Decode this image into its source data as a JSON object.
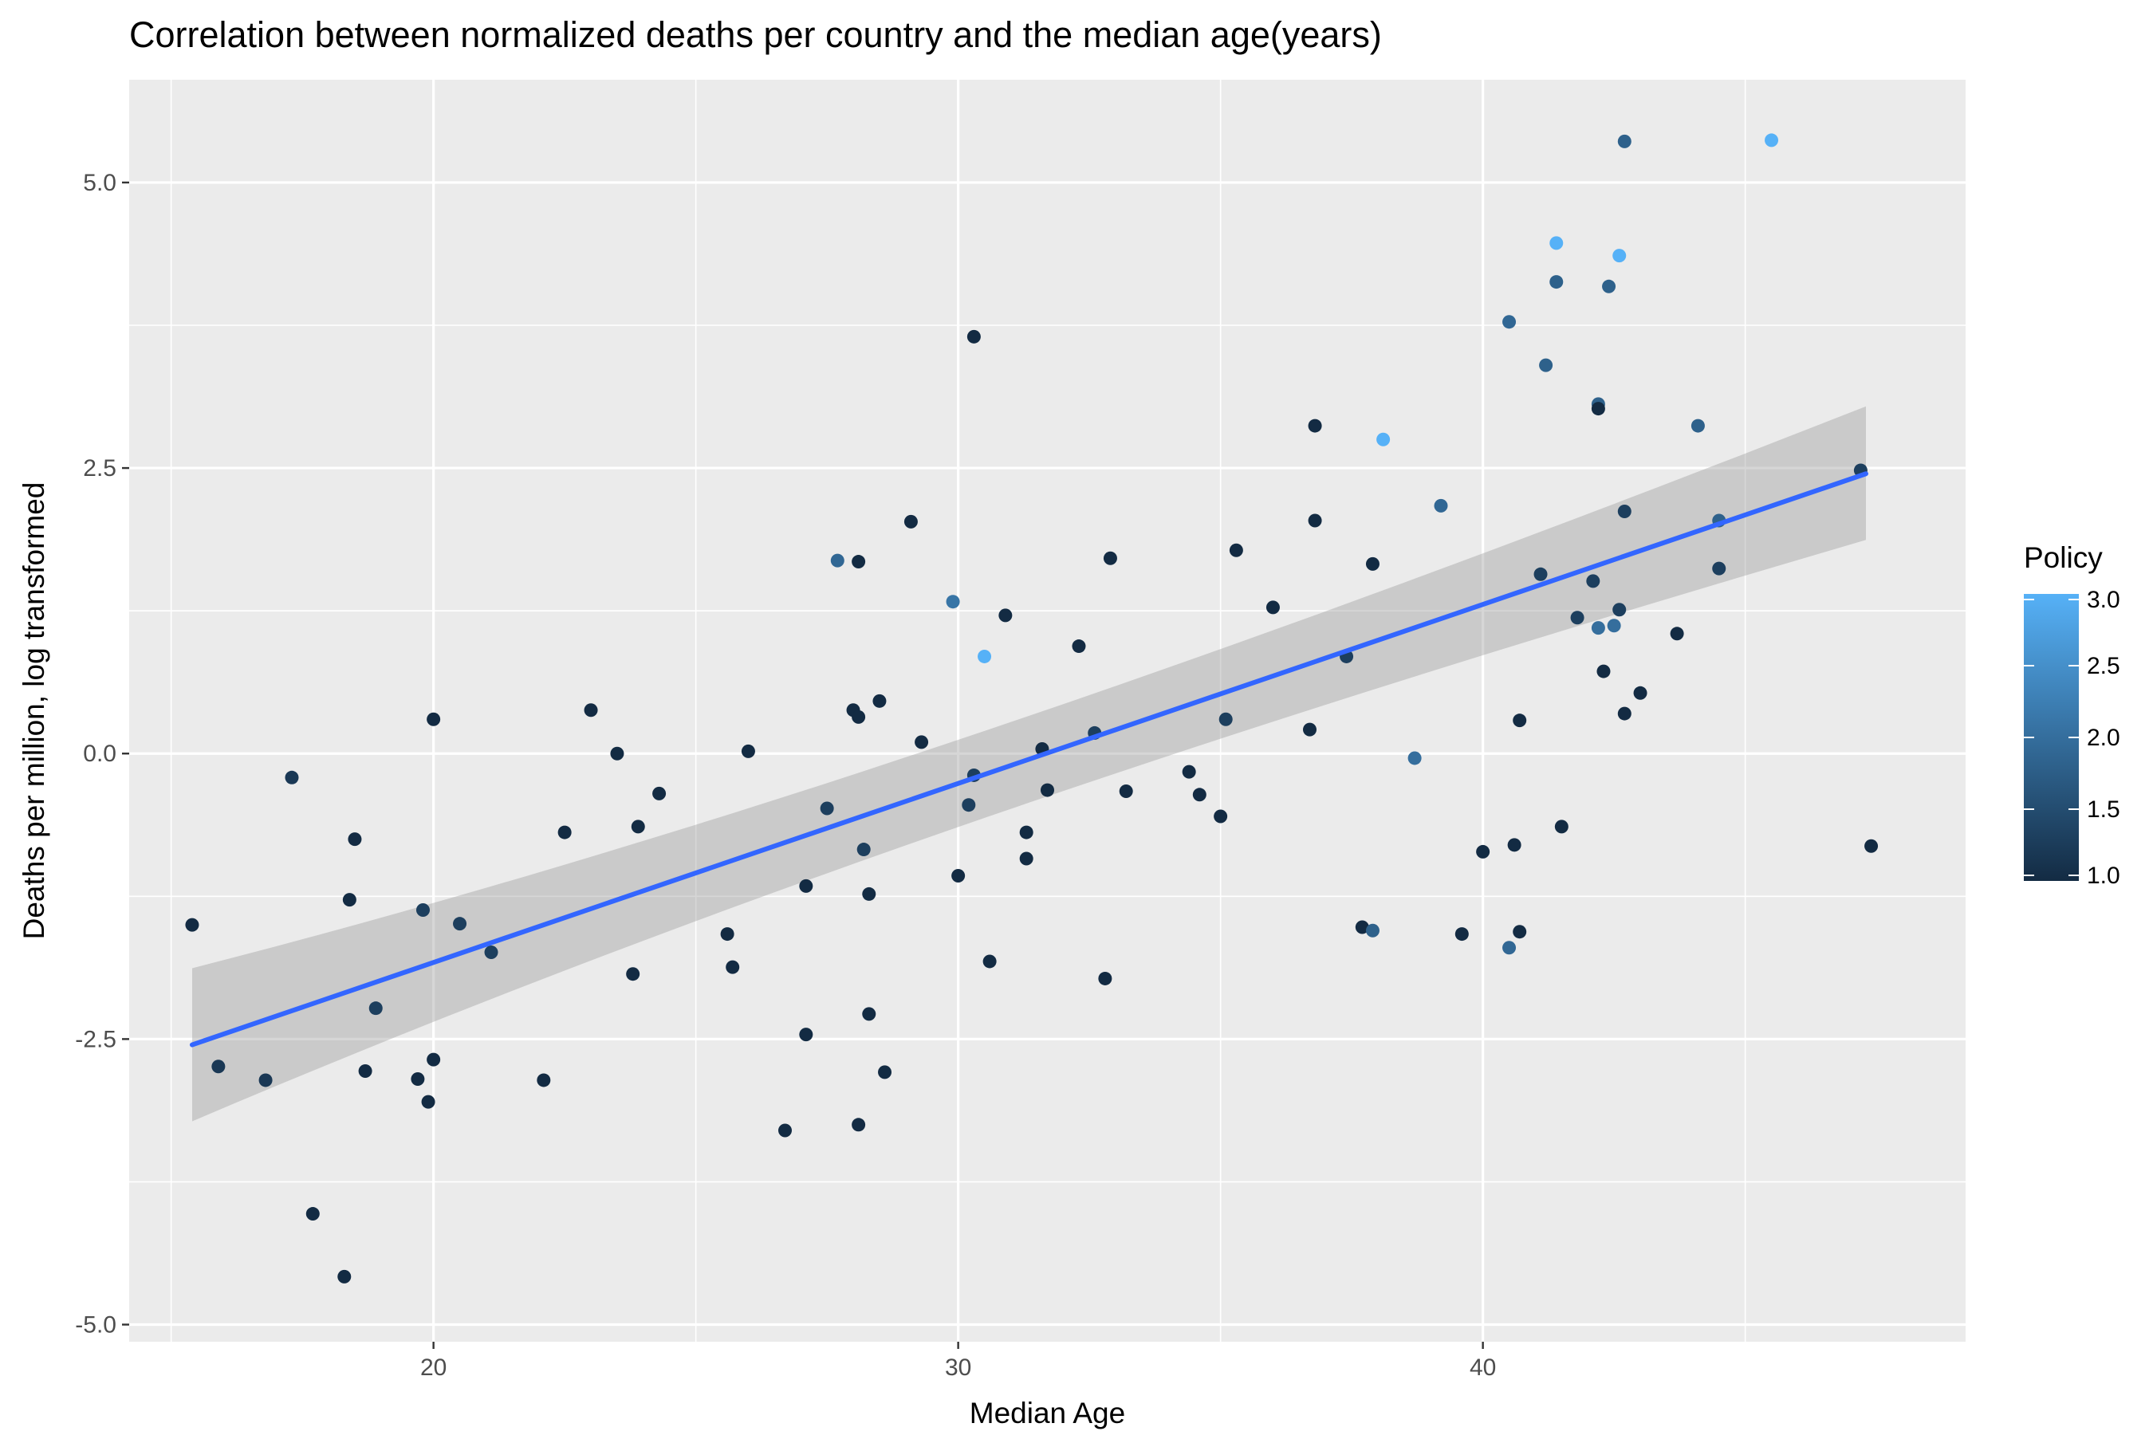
{
  "chart_data": {
    "type": "scatter",
    "title": "Correlation between normalized deaths per country and the median age(years)",
    "xlabel": "Median Age",
    "ylabel": "Deaths per million, log transformed",
    "xlim": [
      14.2,
      49.2
    ],
    "ylim": [
      -5.15,
      5.9
    ],
    "x_ticks": [
      20,
      30,
      40
    ],
    "x_tick_labels": [
      "20",
      "30",
      "40"
    ],
    "y_ticks": [
      -5,
      -2.5,
      0,
      2.5,
      5
    ],
    "y_tick_labels": [
      "-5.0",
      "-2.5",
      "0.0",
      "2.5",
      "5.0"
    ],
    "grid": true,
    "legend": {
      "title": "Policy",
      "placement": "right",
      "type": "colorbar",
      "breaks": [
        1.0,
        1.5,
        2.0,
        2.5,
        3.0
      ],
      "labels": [
        "1.0",
        "1.5",
        "2.0",
        "2.5",
        "3.0"
      ],
      "range": [
        1.0,
        3.0
      ],
      "low_color": "#132B43",
      "high_color": "#56B1F7"
    },
    "colors": {
      "panel_background": "#EBEBEB",
      "grid": "#FFFFFF",
      "fit_line": "#3366FF",
      "confidence_band": "#999999"
    },
    "smooth": {
      "method": "lm",
      "x_range": [
        15.4,
        47.3
      ],
      "y_start": -2.55,
      "y_end": 2.45,
      "ci_lower_start": -3.22,
      "ci_upper_start": -1.88,
      "ci_lower_end": 1.87,
      "ci_upper_end": 3.04
    },
    "points": [
      {
        "x": 15.4,
        "y": -1.5,
        "policy": 1.0
      },
      {
        "x": 15.9,
        "y": -2.74,
        "policy": 1.2
      },
      {
        "x": 16.8,
        "y": -2.86,
        "policy": 1.2
      },
      {
        "x": 17.3,
        "y": -0.21,
        "policy": 1.2
      },
      {
        "x": 17.7,
        "y": -4.03,
        "policy": 1.0
      },
      {
        "x": 18.3,
        "y": -4.58,
        "policy": 1.0
      },
      {
        "x": 18.4,
        "y": -1.28,
        "policy": 1.0
      },
      {
        "x": 18.5,
        "y": -0.75,
        "policy": 1.0
      },
      {
        "x": 18.7,
        "y": -2.78,
        "policy": 1.0
      },
      {
        "x": 18.9,
        "y": -2.23,
        "policy": 1.3
      },
      {
        "x": 19.7,
        "y": -2.85,
        "policy": 1.0
      },
      {
        "x": 19.8,
        "y": -1.37,
        "policy": 1.3
      },
      {
        "x": 19.9,
        "y": -3.05,
        "policy": 1.0
      },
      {
        "x": 20.0,
        "y": -2.68,
        "policy": 1.0
      },
      {
        "x": 20.0,
        "y": 0.3,
        "policy": 1.0
      },
      {
        "x": 20.5,
        "y": -1.49,
        "policy": 1.3
      },
      {
        "x": 21.1,
        "y": -1.74,
        "policy": 1.3
      },
      {
        "x": 22.1,
        "y": -2.86,
        "policy": 1.0
      },
      {
        "x": 22.5,
        "y": -0.69,
        "policy": 1.0
      },
      {
        "x": 23.0,
        "y": 0.38,
        "policy": 1.0
      },
      {
        "x": 23.5,
        "y": 0.0,
        "policy": 1.0
      },
      {
        "x": 23.8,
        "y": -1.93,
        "policy": 1.0
      },
      {
        "x": 23.9,
        "y": -0.64,
        "policy": 1.0
      },
      {
        "x": 24.3,
        "y": -0.35,
        "policy": 1.0
      },
      {
        "x": 25.6,
        "y": -1.58,
        "policy": 1.0
      },
      {
        "x": 25.7,
        "y": -1.87,
        "policy": 1.0
      },
      {
        "x": 26.0,
        "y": 0.02,
        "policy": 1.0
      },
      {
        "x": 26.7,
        "y": -3.3,
        "policy": 1.0
      },
      {
        "x": 27.1,
        "y": -2.46,
        "policy": 1.0
      },
      {
        "x": 27.1,
        "y": -1.16,
        "policy": 1.0
      },
      {
        "x": 27.5,
        "y": -0.48,
        "policy": 1.3
      },
      {
        "x": 27.7,
        "y": 1.69,
        "policy": 1.9
      },
      {
        "x": 28.0,
        "y": 0.38,
        "policy": 1.0
      },
      {
        "x": 28.1,
        "y": 1.68,
        "policy": 1.0
      },
      {
        "x": 28.1,
        "y": 0.32,
        "policy": 1.0
      },
      {
        "x": 28.1,
        "y": -3.25,
        "policy": 1.0
      },
      {
        "x": 28.2,
        "y": -0.84,
        "policy": 1.3
      },
      {
        "x": 28.3,
        "y": -1.23,
        "policy": 1.0
      },
      {
        "x": 28.3,
        "y": -2.28,
        "policy": 1.0
      },
      {
        "x": 28.5,
        "y": 0.46,
        "policy": 1.0
      },
      {
        "x": 28.6,
        "y": -2.79,
        "policy": 1.0
      },
      {
        "x": 29.1,
        "y": 2.03,
        "policy": 1.0
      },
      {
        "x": 29.3,
        "y": 0.1,
        "policy": 1.0
      },
      {
        "x": 29.9,
        "y": 1.33,
        "policy": 2.1
      },
      {
        "x": 30.0,
        "y": -1.07,
        "policy": 1.0
      },
      {
        "x": 30.2,
        "y": -0.45,
        "policy": 1.3
      },
      {
        "x": 30.3,
        "y": 3.65,
        "policy": 1.0
      },
      {
        "x": 30.3,
        "y": -0.19,
        "policy": 1.3
      },
      {
        "x": 30.5,
        "y": 0.85,
        "policy": 3.0
      },
      {
        "x": 30.6,
        "y": -1.82,
        "policy": 1.0
      },
      {
        "x": 30.9,
        "y": 1.21,
        "policy": 1.0
      },
      {
        "x": 31.3,
        "y": -0.69,
        "policy": 1.0
      },
      {
        "x": 31.3,
        "y": -0.92,
        "policy": 1.0
      },
      {
        "x": 31.6,
        "y": 0.04,
        "policy": 1.0
      },
      {
        "x": 31.7,
        "y": -0.32,
        "policy": 1.0
      },
      {
        "x": 32.3,
        "y": 0.94,
        "policy": 1.0
      },
      {
        "x": 32.6,
        "y": 0.18,
        "policy": 1.3
      },
      {
        "x": 32.8,
        "y": -1.97,
        "policy": 1.0
      },
      {
        "x": 32.9,
        "y": 1.71,
        "policy": 1.0
      },
      {
        "x": 33.2,
        "y": -0.33,
        "policy": 1.0
      },
      {
        "x": 34.4,
        "y": -0.16,
        "policy": 1.0
      },
      {
        "x": 34.6,
        "y": -0.36,
        "policy": 1.0
      },
      {
        "x": 35.0,
        "y": -0.55,
        "policy": 1.0
      },
      {
        "x": 35.1,
        "y": 0.3,
        "policy": 1.3
      },
      {
        "x": 35.3,
        "y": 1.78,
        "policy": 1.0
      },
      {
        "x": 36.0,
        "y": 1.28,
        "policy": 1.0
      },
      {
        "x": 36.7,
        "y": 0.21,
        "policy": 1.0
      },
      {
        "x": 36.8,
        "y": 2.87,
        "policy": 1.0
      },
      {
        "x": 36.8,
        "y": 2.04,
        "policy": 1.0
      },
      {
        "x": 37.4,
        "y": 0.85,
        "policy": 1.3
      },
      {
        "x": 37.7,
        "y": -1.52,
        "policy": 1.0
      },
      {
        "x": 37.9,
        "y": -1.55,
        "policy": 1.8
      },
      {
        "x": 37.9,
        "y": 1.66,
        "policy": 1.0
      },
      {
        "x": 38.1,
        "y": 2.75,
        "policy": 3.0
      },
      {
        "x": 38.7,
        "y": -0.04,
        "policy": 2.0
      },
      {
        "x": 39.2,
        "y": 2.17,
        "policy": 1.9
      },
      {
        "x": 39.6,
        "y": -1.58,
        "policy": 1.0
      },
      {
        "x": 40.0,
        "y": -0.86,
        "policy": 1.0
      },
      {
        "x": 40.5,
        "y": 3.78,
        "policy": 1.9
      },
      {
        "x": 40.5,
        "y": -1.7,
        "policy": 1.9
      },
      {
        "x": 40.6,
        "y": -0.8,
        "policy": 1.0
      },
      {
        "x": 40.7,
        "y": -1.56,
        "policy": 1.0
      },
      {
        "x": 40.7,
        "y": 0.29,
        "policy": 1.0
      },
      {
        "x": 41.1,
        "y": 1.57,
        "policy": 1.3
      },
      {
        "x": 41.2,
        "y": 3.4,
        "policy": 1.8
      },
      {
        "x": 41.4,
        "y": 4.47,
        "policy": 3.0
      },
      {
        "x": 41.4,
        "y": 4.13,
        "policy": 1.8
      },
      {
        "x": 41.5,
        "y": -0.64,
        "policy": 1.0
      },
      {
        "x": 41.8,
        "y": 1.19,
        "policy": 1.3
      },
      {
        "x": 42.1,
        "y": 1.51,
        "policy": 1.3
      },
      {
        "x": 42.2,
        "y": 3.06,
        "policy": 1.8
      },
      {
        "x": 42.2,
        "y": 3.02,
        "policy": 1.0
      },
      {
        "x": 42.2,
        "y": 1.1,
        "policy": 2.0
      },
      {
        "x": 42.3,
        "y": 0.72,
        "policy": 1.0
      },
      {
        "x": 42.4,
        "y": 4.09,
        "policy": 1.8
      },
      {
        "x": 42.5,
        "y": 1.12,
        "policy": 2.0
      },
      {
        "x": 42.6,
        "y": 4.36,
        "policy": 3.0
      },
      {
        "x": 42.6,
        "y": 1.26,
        "policy": 1.3
      },
      {
        "x": 42.7,
        "y": 5.36,
        "policy": 1.8
      },
      {
        "x": 42.7,
        "y": 2.12,
        "policy": 1.3
      },
      {
        "x": 42.7,
        "y": 0.35,
        "policy": 1.0
      },
      {
        "x": 43.0,
        "y": 0.53,
        "policy": 1.0
      },
      {
        "x": 43.7,
        "y": 1.05,
        "policy": 1.0
      },
      {
        "x": 44.1,
        "y": 2.87,
        "policy": 1.8
      },
      {
        "x": 44.5,
        "y": 2.04,
        "policy": 1.8
      },
      {
        "x": 44.5,
        "y": 1.62,
        "policy": 1.3
      },
      {
        "x": 45.5,
        "y": 5.37,
        "policy": 3.0
      },
      {
        "x": 47.2,
        "y": 2.48,
        "policy": 1.3
      },
      {
        "x": 47.4,
        "y": -0.81,
        "policy": 1.0
      }
    ]
  }
}
